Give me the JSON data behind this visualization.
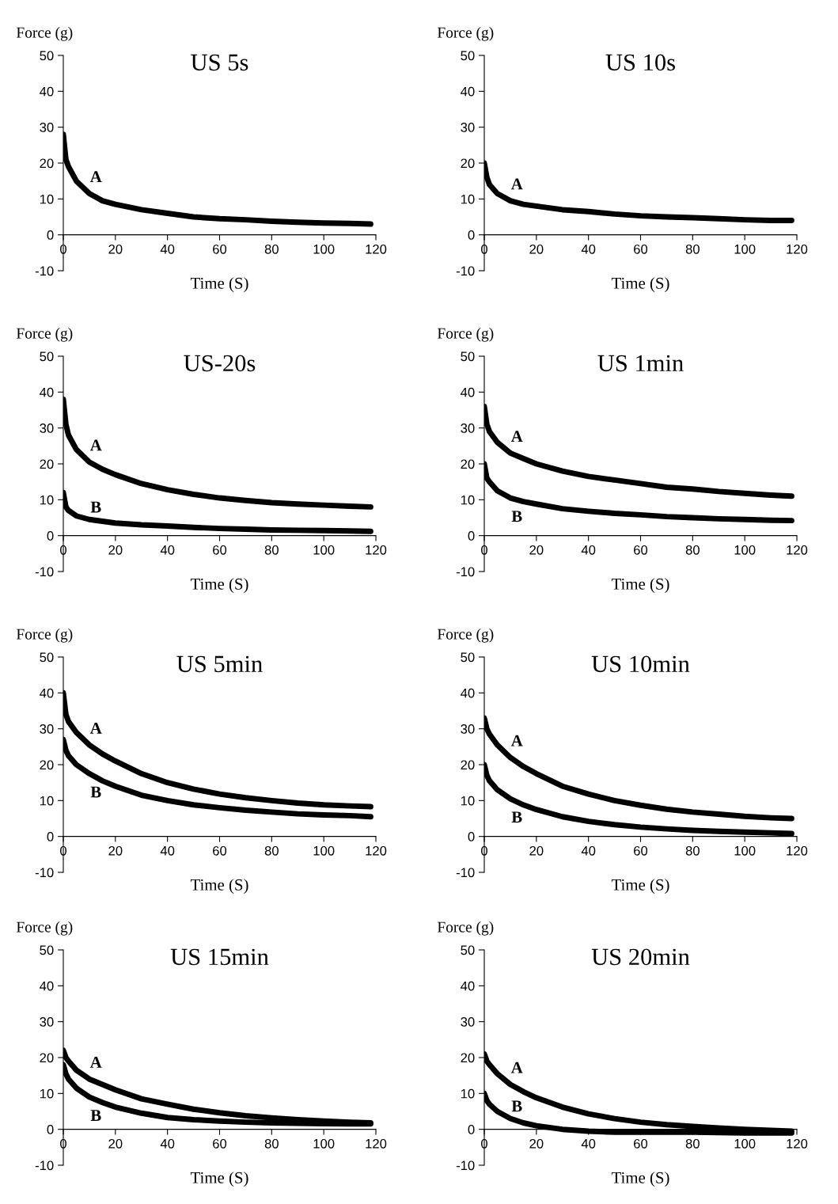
{
  "chart_data": [
    {
      "type": "line",
      "title": "US 5s",
      "xlabel": "Time (S)",
      "ylabel": "Force (g)",
      "x": [
        0,
        1,
        2,
        5,
        10,
        15,
        20,
        30,
        40,
        50,
        60,
        70,
        80,
        90,
        100,
        110,
        118
      ],
      "xlim": [
        0,
        120
      ],
      "ylim": [
        -10,
        50
      ],
      "xticks": [
        0,
        20,
        40,
        60,
        80,
        100,
        120
      ],
      "yticks": [
        -10,
        0,
        10,
        20,
        30,
        40,
        50
      ],
      "grid": false,
      "legend": false,
      "series": [
        {
          "name": "A",
          "color": "#000000",
          "values": [
            28,
            21,
            19,
            15,
            11.5,
            9.5,
            8.5,
            7,
            6,
            5,
            4.5,
            4.2,
            3.8,
            3.5,
            3.3,
            3.2,
            3
          ]
        }
      ]
    },
    {
      "type": "line",
      "title": "US 10s",
      "xlabel": "Time (S)",
      "ylabel": "Force (g)",
      "x": [
        0,
        1,
        2,
        5,
        10,
        15,
        20,
        30,
        40,
        50,
        60,
        70,
        80,
        90,
        100,
        110,
        118
      ],
      "xlim": [
        0,
        120
      ],
      "ylim": [
        -10,
        50
      ],
      "xticks": [
        0,
        20,
        40,
        60,
        80,
        100,
        120
      ],
      "yticks": [
        -10,
        0,
        10,
        20,
        30,
        40,
        50
      ],
      "grid": false,
      "legend": false,
      "series": [
        {
          "name": "A",
          "color": "#000000",
          "values": [
            20,
            16,
            14,
            11.5,
            9.5,
            8.5,
            8,
            7,
            6.5,
            5.8,
            5.3,
            5,
            4.8,
            4.5,
            4.2,
            4,
            4
          ]
        }
      ]
    },
    {
      "type": "line",
      "title": "US-20s",
      "xlabel": "Time (S)",
      "ylabel": "Force (g)",
      "x": [
        0,
        1,
        2,
        5,
        10,
        15,
        20,
        30,
        40,
        50,
        60,
        70,
        80,
        90,
        100,
        110,
        118
      ],
      "xlim": [
        0,
        120
      ],
      "ylim": [
        -10,
        50
      ],
      "xticks": [
        0,
        20,
        40,
        60,
        80,
        100,
        120
      ],
      "yticks": [
        -10,
        0,
        10,
        20,
        30,
        40,
        50
      ],
      "grid": false,
      "legend": false,
      "series": [
        {
          "name": "A",
          "color": "#000000",
          "values": [
            38,
            31,
            28,
            24,
            20.5,
            18.5,
            17,
            14.5,
            12.8,
            11.5,
            10.5,
            9.8,
            9.2,
            8.8,
            8.5,
            8.2,
            8
          ]
        },
        {
          "name": "B",
          "color": "#000000",
          "values": [
            12,
            8,
            7,
            5.5,
            4.5,
            4,
            3.5,
            3,
            2.7,
            2.3,
            2,
            1.8,
            1.6,
            1.5,
            1.4,
            1.3,
            1.2
          ]
        }
      ]
    },
    {
      "type": "line",
      "title": "US 1min",
      "xlabel": "Time (S)",
      "ylabel": "Force (g)",
      "x": [
        0,
        1,
        2,
        5,
        10,
        15,
        20,
        30,
        40,
        50,
        60,
        70,
        80,
        90,
        100,
        110,
        118
      ],
      "xlim": [
        0,
        120
      ],
      "ylim": [
        -10,
        50
      ],
      "xticks": [
        0,
        20,
        40,
        60,
        80,
        100,
        120
      ],
      "yticks": [
        -10,
        0,
        10,
        20,
        30,
        40,
        50
      ],
      "grid": false,
      "legend": false,
      "series": [
        {
          "name": "A",
          "color": "#000000",
          "values": [
            36,
            31,
            29,
            26,
            23,
            21.5,
            20,
            18,
            16.5,
            15.5,
            14.5,
            13.5,
            13,
            12.3,
            11.8,
            11.3,
            11
          ]
        },
        {
          "name": "B",
          "color": "#000000",
          "values": [
            20,
            16,
            15,
            12.5,
            10.5,
            9.5,
            8.8,
            7.5,
            6.8,
            6.2,
            5.8,
            5.3,
            5,
            4.7,
            4.5,
            4.3,
            4.2
          ]
        }
      ]
    },
    {
      "type": "line",
      "title": "US 5min",
      "xlabel": "Time (S)",
      "ylabel": "Force (g)",
      "x": [
        0,
        1,
        2,
        5,
        10,
        15,
        20,
        30,
        40,
        50,
        60,
        70,
        80,
        90,
        100,
        110,
        118
      ],
      "xlim": [
        0,
        120
      ],
      "ylim": [
        -10,
        50
      ],
      "xticks": [
        0,
        20,
        40,
        60,
        80,
        100,
        120
      ],
      "yticks": [
        -10,
        0,
        10,
        20,
        30,
        40,
        50
      ],
      "grid": false,
      "legend": false,
      "series": [
        {
          "name": "A",
          "color": "#000000",
          "values": [
            40,
            34,
            32,
            29,
            25.5,
            23,
            21,
            17.5,
            15,
            13.2,
            11.8,
            10.8,
            10,
            9.3,
            8.8,
            8.5,
            8.3
          ]
        },
        {
          "name": "B",
          "color": "#000000",
          "values": [
            27,
            24,
            22.5,
            20,
            17.5,
            15.5,
            14,
            11.5,
            10,
            8.8,
            8,
            7.3,
            6.8,
            6.3,
            6,
            5.8,
            5.5
          ]
        }
      ]
    },
    {
      "type": "line",
      "title": "US 10min",
      "xlabel": "Time (S)",
      "ylabel": "Force (g)",
      "x": [
        0,
        1,
        2,
        5,
        10,
        15,
        20,
        30,
        40,
        50,
        60,
        70,
        80,
        90,
        100,
        110,
        118
      ],
      "xlim": [
        0,
        120
      ],
      "ylim": [
        -10,
        50
      ],
      "xticks": [
        0,
        20,
        40,
        60,
        80,
        100,
        120
      ],
      "yticks": [
        -10,
        0,
        10,
        20,
        30,
        40,
        50
      ],
      "grid": false,
      "legend": false,
      "series": [
        {
          "name": "A",
          "color": "#000000",
          "values": [
            33,
            30,
            28.5,
            25.5,
            22,
            19.5,
            17.5,
            14,
            11.8,
            10,
            8.7,
            7.6,
            6.8,
            6.2,
            5.6,
            5.2,
            5
          ]
        },
        {
          "name": "B",
          "color": "#000000",
          "values": [
            20,
            17,
            15.5,
            13,
            10.5,
            8.8,
            7.5,
            5.5,
            4.2,
            3.3,
            2.6,
            2.1,
            1.7,
            1.4,
            1.2,
            1,
            0.8
          ]
        }
      ]
    },
    {
      "type": "line",
      "title": "US 15min",
      "xlabel": "Time (S)",
      "ylabel": "Force (g)",
      "x": [
        0,
        1,
        2,
        5,
        10,
        15,
        20,
        30,
        40,
        50,
        60,
        70,
        80,
        90,
        100,
        110,
        118
      ],
      "xlim": [
        0,
        120
      ],
      "ylim": [
        -10,
        50
      ],
      "xticks": [
        0,
        20,
        40,
        60,
        80,
        100,
        120
      ],
      "yticks": [
        -10,
        0,
        10,
        20,
        30,
        40,
        50
      ],
      "grid": false,
      "legend": false,
      "series": [
        {
          "name": "A",
          "color": "#000000",
          "values": [
            22,
            20,
            19,
            16.5,
            14,
            12.5,
            11,
            8.5,
            7,
            5.6,
            4.6,
            3.8,
            3.2,
            2.7,
            2.3,
            2,
            1.8
          ]
        },
        {
          "name": "B",
          "color": "#000000",
          "values": [
            18,
            15.5,
            14,
            11.5,
            9,
            7.5,
            6.2,
            4.5,
            3.3,
            2.7,
            2.3,
            2,
            1.8,
            1.7,
            1.6,
            1.5,
            1.5
          ]
        }
      ]
    },
    {
      "type": "line",
      "title": "US 20min",
      "xlabel": "Time (S)",
      "ylabel": "Force (g)",
      "x": [
        0,
        1,
        2,
        5,
        10,
        15,
        20,
        30,
        40,
        50,
        60,
        70,
        80,
        90,
        100,
        110,
        118
      ],
      "xlim": [
        0,
        120
      ],
      "ylim": [
        -10,
        50
      ],
      "xticks": [
        0,
        20,
        40,
        60,
        80,
        100,
        120
      ],
      "yticks": [
        -10,
        0,
        10,
        20,
        30,
        40,
        50
      ],
      "grid": false,
      "legend": false,
      "series": [
        {
          "name": "A",
          "color": "#000000",
          "values": [
            21,
            19,
            18,
            15.5,
            12.5,
            10.5,
            8.8,
            6.2,
            4.3,
            3,
            2,
            1.3,
            0.8,
            0.4,
            0,
            -0.3,
            -0.5
          ]
        },
        {
          "name": "B",
          "color": "#000000",
          "values": [
            10,
            8,
            7,
            5,
            3,
            1.8,
            1,
            0,
            -0.5,
            -0.8,
            -0.8,
            -0.8,
            -0.8,
            -0.9,
            -1,
            -1,
            -1
          ]
        }
      ]
    }
  ]
}
